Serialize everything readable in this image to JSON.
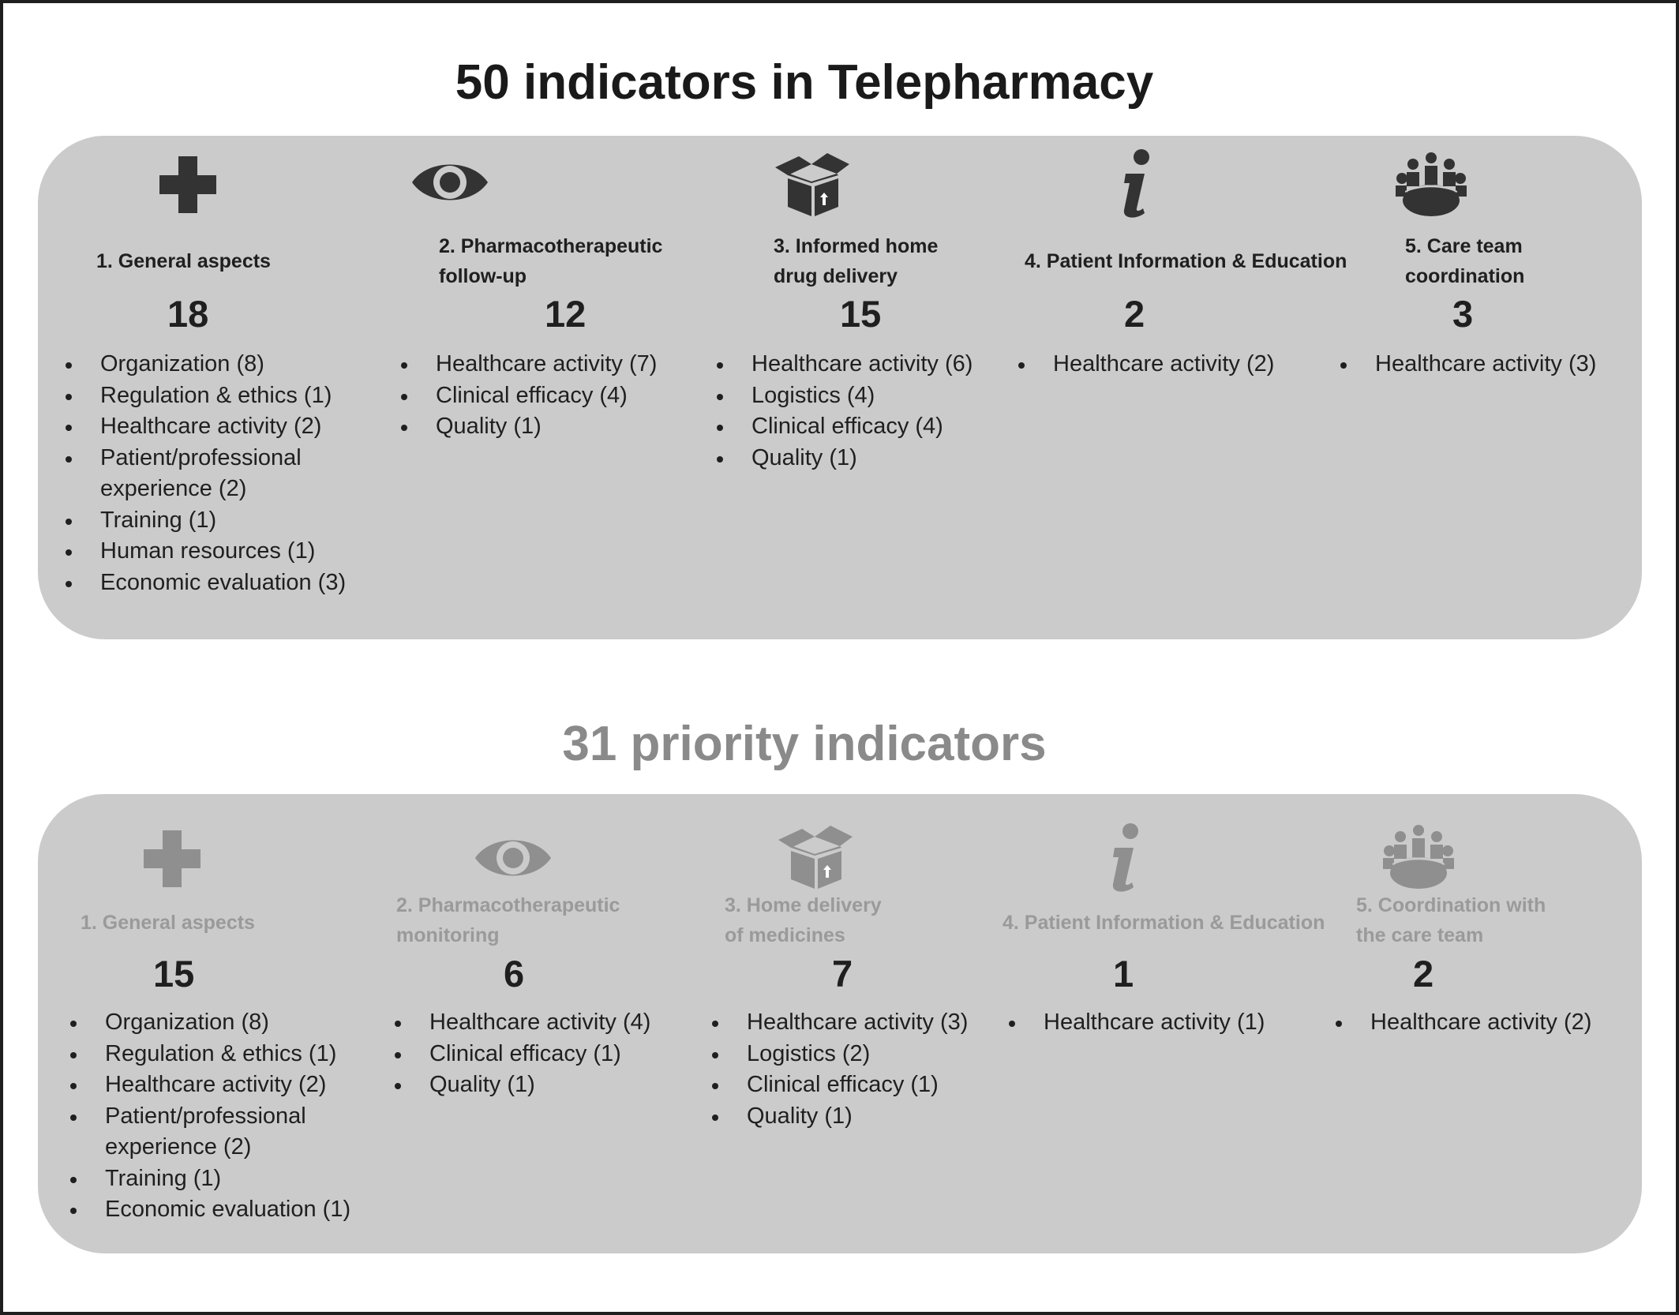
{
  "top": {
    "title": "50 indicators in Telepharmacy",
    "columns": [
      {
        "icon": "medical-cross-icon",
        "heading": [
          "1. General aspects"
        ],
        "count": "18",
        "items": [
          "Organization (8)",
          "Regulation & ethics (1)",
          "Healthcare activity (2)",
          "Patient/professional experience (2)",
          "Training (1)",
          "Human resources (1)",
          "Economic evaluation (3)"
        ]
      },
      {
        "icon": "eye-icon",
        "heading": [
          "2. Pharmacotherapeutic",
          "follow-up"
        ],
        "count": "12",
        "items": [
          "Healthcare activity (7)",
          "Clinical efficacy (4)",
          "Quality (1)"
        ]
      },
      {
        "icon": "open-box-icon",
        "heading": [
          "3. Informed home",
          "drug delivery"
        ],
        "count": "15",
        "items": [
          "Healthcare activity (6)",
          "Logistics (4)",
          "Clinical efficacy (4)",
          "Quality (1)"
        ]
      },
      {
        "icon": "information-icon",
        "heading": [
          "4. Patient Information & Education"
        ],
        "count": "2",
        "items": [
          "Healthcare activity (2)"
        ]
      },
      {
        "icon": "team-meeting-icon",
        "heading": [
          "5. Care team",
          "coordination"
        ],
        "count": "3",
        "items": [
          "Healthcare activity (3)"
        ]
      }
    ]
  },
  "bottom": {
    "title": "31 priority indicators",
    "columns": [
      {
        "icon": "medical-cross-icon",
        "heading": [
          "1. General aspects"
        ],
        "count": "15",
        "items": [
          "Organization (8)",
          "Regulation & ethics (1)",
          "Healthcare activity (2)",
          "Patient/professional experience (2)",
          "Training (1)",
          "Economic evaluation (1)"
        ]
      },
      {
        "icon": "eye-icon",
        "heading": [
          "2. Pharmacotherapeutic",
          "monitoring"
        ],
        "count": "6",
        "items": [
          "Healthcare activity (4)",
          "Clinical efficacy (1)",
          "Quality (1)"
        ]
      },
      {
        "icon": "open-box-icon",
        "heading": [
          "3. Home delivery",
          "of medicines"
        ],
        "count": "7",
        "items": [
          "Healthcare activity (3)",
          "Logistics (2)",
          "Clinical efficacy (1)",
          "Quality (1)"
        ]
      },
      {
        "icon": "information-icon",
        "heading": [
          "4. Patient Information & Education"
        ],
        "count": "1",
        "items": [
          "Healthcare activity (1)"
        ]
      },
      {
        "icon": "team-meeting-icon",
        "heading": [
          "5. Coordination with",
          "the care team"
        ],
        "count": "2",
        "items": [
          "Healthcare activity (2)"
        ]
      }
    ]
  },
  "colors": {
    "panel": "#cbcbcb",
    "icon_top": "#333333",
    "icon_bottom": "#8f8f8f",
    "heading_bottom": "#9a9a9a",
    "title_bottom": "#8a8a8a"
  }
}
